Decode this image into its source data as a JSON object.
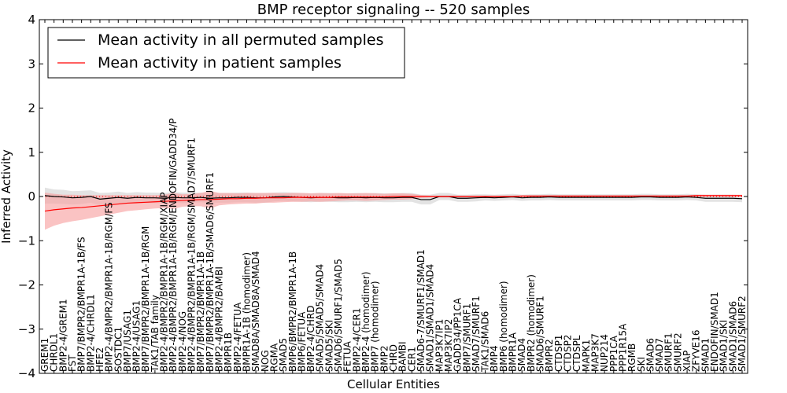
{
  "chart_data": {
    "type": "line",
    "title": "BMP receptor signaling -- 520 samples",
    "xlabel": "Cellular Entities",
    "ylabel": "Inferred Activity",
    "ylim": [
      -4,
      4
    ],
    "yticks": [
      -4,
      -3,
      -2,
      -1,
      0,
      1,
      2,
      3,
      4
    ],
    "grid": false,
    "legend_position": "top-left",
    "reference_line": 0,
    "categories": [
      "GREM1",
      "CHRDL1",
      "BMP2-4/GREM1",
      "FST",
      "BMP7/BMPR2/BMPR1A-1B/FS",
      "BMP2-4/CHRDL1",
      "HFE2",
      "BMP2-4/BMPR2/BMPR1A-1B/RGM/FS",
      "SOSTDC1",
      "BMP7/USAG1",
      "BMP2-4/USAG1",
      "BMP7/BMPR2/BMPR1A-1B/RGM",
      "TAK1/TAB family",
      "BMP2-4/BMPR2/BMPR1A-1B/RGM/XIAP",
      "BMP2-4/BMPR2/BMPR1A-1B/RGM/ENDOFIN/GADD34/P",
      "BMP2-4/NOG",
      "BMP2-4/BMPR2/BMPR1A-1B/RGM/SMAD7/SMURF1",
      "BMP7/BMPR2/BMPR1A-1B",
      "BMP7/BMPR2/BMPR1A-1B/SMAD6/SMURF1",
      "BMP2-4/BMPR2/BAMBI",
      "BMPR1B",
      "BMP2-4/FETUA",
      "BMPR1A-1B (homodimer)",
      "SMAD8A/SMAD8A/SMAD4",
      "NOG",
      "RGMA",
      "SMAD5",
      "BMP6/BMPR2/BMPR1A-1B",
      "BMP6/FETUA",
      "BMP2-4/CHRD",
      "SMAD5/SMAD5/SMAD4",
      "SMAD5/SKI",
      "SMAD6/SMURF1/SMAD5",
      "FETUA",
      "BMP2-4/CER1",
      "BMP2-4 (homodimer)",
      "BMP7 (homodimer)",
      "BMP2",
      "CHRD",
      "BAMBI",
      "CER1",
      "SMAD6-7/SMURF1/SMAD1",
      "SMAD1/SMAD1/SMAD4",
      "MAP3K7IP1",
      "MAP3K7IP2",
      "GADD34/PP1CA",
      "BMP7/SMURF1",
      "SMAD7/SMURF1",
      "TAK1/SMAD6",
      "BMP4",
      "BMP6 (homodimer)",
      "BMPR1A",
      "SMAD4",
      "BMPR2 (homodimer)",
      "SMAD6/SMURF1",
      "BMPR2",
      "CTDSP1",
      "CTDSP2",
      "CTDSPL",
      "MAPK1",
      "MAP3K7",
      "NUP214",
      "PPP1CA",
      "PPP1R15A",
      "RGMB",
      "SKI",
      "SMAD6",
      "SMAD7",
      "SMURF1",
      "SMURF2",
      "XIAP",
      "ZFYVE16",
      "SMAD1",
      "ENDOFIN/SMAD1",
      "SMAD1/SKI",
      "SMAD1/SMAD6",
      "SMAD1/SMURF2"
    ],
    "series": [
      {
        "name": "Mean activity in all permuted samples",
        "color": "#000000",
        "values": [
          0.02,
          0.0,
          -0.01,
          -0.03,
          -0.02,
          0.0,
          -0.06,
          -0.04,
          -0.02,
          -0.04,
          -0.02,
          -0.03,
          -0.03,
          -0.04,
          -0.02,
          -0.03,
          -0.03,
          -0.02,
          -0.04,
          -0.03,
          -0.03,
          -0.02,
          -0.02,
          -0.03,
          -0.03,
          -0.01,
          0.0,
          -0.01,
          -0.02,
          -0.03,
          -0.02,
          -0.02,
          -0.03,
          -0.03,
          -0.02,
          -0.03,
          -0.02,
          -0.03,
          -0.03,
          -0.02,
          -0.02,
          -0.07,
          -0.07,
          0.0,
          0.0,
          -0.04,
          -0.04,
          -0.03,
          -0.02,
          -0.03,
          -0.02,
          -0.01,
          -0.03,
          -0.02,
          -0.02,
          -0.01,
          -0.02,
          -0.02,
          -0.02,
          -0.02,
          -0.02,
          -0.02,
          -0.02,
          -0.02,
          -0.02,
          -0.01,
          -0.01,
          -0.02,
          -0.02,
          -0.02,
          -0.01,
          -0.02,
          -0.04,
          -0.04,
          -0.04,
          -0.04,
          -0.05
        ]
      },
      {
        "name": "Mean activity in patient samples",
        "color": "#ff0000",
        "values": [
          -0.33,
          -0.3,
          -0.28,
          -0.26,
          -0.25,
          -0.23,
          -0.21,
          -0.19,
          -0.17,
          -0.15,
          -0.14,
          -0.13,
          -0.12,
          -0.11,
          -0.1,
          -0.09,
          -0.08,
          -0.07,
          -0.07,
          -0.06,
          -0.05,
          -0.05,
          -0.04,
          -0.04,
          -0.03,
          -0.03,
          -0.03,
          -0.02,
          -0.02,
          -0.02,
          -0.02,
          -0.02,
          -0.01,
          -0.01,
          -0.01,
          -0.01,
          -0.01,
          -0.01,
          0.0,
          0.0,
          0.0,
          0.0,
          0.0,
          0.0,
          0.0,
          0.0,
          0.0,
          0.0,
          0.0,
          0.0,
          0.0,
          0.0,
          0.01,
          0.01,
          0.01,
          0.01,
          0.01,
          0.01,
          0.01,
          0.01,
          0.01,
          0.01,
          0.01,
          0.01,
          0.01,
          0.01,
          0.01,
          0.01,
          0.01,
          0.01,
          0.01,
          0.02,
          0.02,
          0.02,
          0.02,
          0.02,
          0.02
        ]
      }
    ],
    "bands": [
      {
        "name": "permuted spread",
        "color": "#d9d9d9",
        "spread": [
          0.18,
          0.16,
          0.16,
          0.15,
          0.15,
          0.14,
          0.14,
          0.13,
          0.13,
          0.12,
          0.12,
          0.12,
          0.12,
          0.12,
          0.12,
          0.12,
          0.11,
          0.11,
          0.11,
          0.11,
          0.11,
          0.11,
          0.11,
          0.11,
          0.11,
          0.1,
          0.1,
          0.1,
          0.1,
          0.1,
          0.1,
          0.1,
          0.1,
          0.1,
          0.1,
          0.1,
          0.1,
          0.1,
          0.1,
          0.1,
          0.1,
          0.11,
          0.11,
          0.08,
          0.08,
          0.08,
          0.08,
          0.08,
          0.07,
          0.07,
          0.07,
          0.07,
          0.07,
          0.07,
          0.07,
          0.07,
          0.07,
          0.07,
          0.07,
          0.07,
          0.07,
          0.07,
          0.07,
          0.07,
          0.07,
          0.07,
          0.07,
          0.07,
          0.07,
          0.07,
          0.07,
          0.07,
          0.08,
          0.08,
          0.08,
          0.08,
          0.08
        ]
      },
      {
        "name": "patient spread",
        "color": "#f7a3a3",
        "spread": [
          0.42,
          0.36,
          0.32,
          0.3,
          0.28,
          0.26,
          0.24,
          0.22,
          0.2,
          0.18,
          0.17,
          0.16,
          0.15,
          0.15,
          0.18,
          0.14,
          0.14,
          0.15,
          0.2,
          0.14,
          0.13,
          0.12,
          0.12,
          0.12,
          0.11,
          0.11,
          0.1,
          0.1,
          0.1,
          0.09,
          0.1,
          0.09,
          0.09,
          0.08,
          0.08,
          0.09,
          0.08,
          0.07,
          0.07,
          0.07,
          0.06,
          0.03,
          0.02,
          0.02,
          0.02,
          0.02,
          0.02,
          0.02,
          0.02,
          0.02,
          0.02,
          0.02,
          0.02,
          0.02,
          0.02,
          0.02,
          0.02,
          0.02,
          0.02,
          0.02,
          0.02,
          0.02,
          0.02,
          0.02,
          0.02,
          0.02,
          0.02,
          0.02,
          0.02,
          0.02,
          0.02,
          0.02,
          0.02,
          0.02,
          0.02,
          0.02,
          0.02
        ]
      }
    ]
  }
}
